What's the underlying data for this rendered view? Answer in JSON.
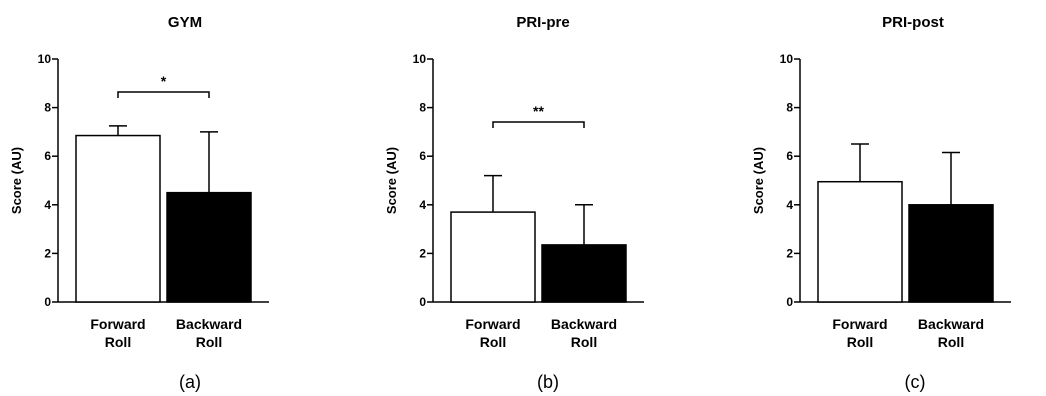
{
  "chart_data": [
    {
      "type": "bar",
      "title": "GYM",
      "panel_label": "(a)",
      "ylabel": "Score (AU)",
      "xlabel": "",
      "ylim": [
        0,
        10
      ],
      "yticks": [
        "0",
        "2",
        "4",
        "6",
        "8",
        "10"
      ],
      "categories": [
        "Forward Roll",
        "Backward Roll"
      ],
      "category_lines": [
        [
          "Forward",
          "Roll"
        ],
        [
          "Backward",
          "Roll"
        ]
      ],
      "values": [
        6.85,
        4.5
      ],
      "error_upper": [
        0.4,
        2.5
      ],
      "bar_colors": [
        "#ffffff",
        "#000000"
      ],
      "significance": "*"
    },
    {
      "type": "bar",
      "title": "PRI-pre",
      "panel_label": "(b)",
      "ylabel": "Score (AU)",
      "xlabel": "",
      "ylim": [
        0,
        10
      ],
      "yticks": [
        "0",
        "2",
        "4",
        "6",
        "8",
        "10"
      ],
      "categories": [
        "Forward Roll",
        "Backward Roll"
      ],
      "category_lines": [
        [
          "Forward",
          "Roll"
        ],
        [
          "Backward",
          "Roll"
        ]
      ],
      "values": [
        3.7,
        2.35
      ],
      "error_upper": [
        1.5,
        1.65
      ],
      "bar_colors": [
        "#ffffff",
        "#000000"
      ],
      "significance": "**"
    },
    {
      "type": "bar",
      "title": "PRI-post",
      "panel_label": "(c)",
      "ylabel": "Score (AU)",
      "xlabel": "",
      "ylim": [
        0,
        10
      ],
      "yticks": [
        "0",
        "2",
        "4",
        "6",
        "8",
        "10"
      ],
      "categories": [
        "Forward Roll",
        "Backward Roll"
      ],
      "category_lines": [
        [
          "Forward",
          "Roll"
        ],
        [
          "Backward",
          "Roll"
        ]
      ],
      "values": [
        4.95,
        4.0
      ],
      "error_upper": [
        1.55,
        2.15
      ],
      "bar_colors": [
        "#ffffff",
        "#000000"
      ],
      "significance": ""
    }
  ]
}
